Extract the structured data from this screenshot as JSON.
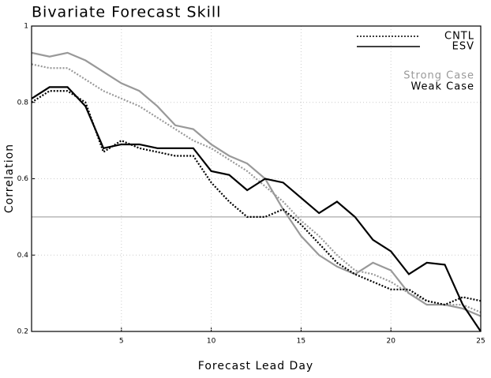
{
  "chart_data": {
    "type": "line",
    "title": "Bivariate Forecast Skill",
    "xlabel": "Forecast Lead Day",
    "ylabel": "Correlation",
    "x": [
      0,
      1,
      2,
      3,
      4,
      5,
      6,
      7,
      8,
      9,
      10,
      11,
      12,
      13,
      14,
      15,
      16,
      17,
      18,
      19,
      20,
      21,
      22,
      23,
      24,
      25
    ],
    "xlim": [
      0,
      25
    ],
    "xticks": [
      5,
      10,
      15,
      20,
      25
    ],
    "ylim": [
      0.2,
      1
    ],
    "yticks": [
      0.2,
      0.4,
      0.6,
      0.8,
      1
    ],
    "grid": true,
    "legend_position": "upper right",
    "reference_line": {
      "value": 0.5,
      "color": "#aaaaaa"
    },
    "legend": {
      "styles": [
        {
          "label": "CNTL",
          "dash": "dotted"
        },
        {
          "label": "ESV",
          "dash": "solid"
        }
      ],
      "colors": [
        {
          "label": "Strong Case",
          "color": "#999999"
        },
        {
          "label": "Weak Case",
          "color": "#000000"
        }
      ]
    },
    "series": [
      {
        "color": "#999999",
        "dash": "dotted",
        "values": [
          0.9,
          0.89,
          0.89,
          0.86,
          0.83,
          0.81,
          0.79,
          0.76,
          0.73,
          0.7,
          0.68,
          0.65,
          0.62,
          0.58,
          0.54,
          0.49,
          0.45,
          0.4,
          0.36,
          0.35,
          0.33,
          0.3,
          0.28,
          0.27,
          0.27,
          0.25
        ]
      },
      {
        "color": "#999999",
        "dash": "solid",
        "values": [
          0.93,
          0.92,
          0.93,
          0.91,
          0.88,
          0.85,
          0.83,
          0.79,
          0.74,
          0.73,
          0.69,
          0.66,
          0.64,
          0.6,
          0.52,
          0.45,
          0.4,
          0.37,
          0.35,
          0.38,
          0.36,
          0.3,
          0.27,
          0.27,
          0.26,
          0.24
        ]
      },
      {
        "color": "#000000",
        "dash": "dotted",
        "values": [
          0.8,
          0.83,
          0.83,
          0.8,
          0.67,
          0.7,
          0.68,
          0.67,
          0.66,
          0.66,
          0.59,
          0.54,
          0.5,
          0.5,
          0.52,
          0.48,
          0.43,
          0.38,
          0.35,
          0.33,
          0.31,
          0.31,
          0.28,
          0.27,
          0.29,
          0.28
        ]
      },
      {
        "color": "#000000",
        "dash": "solid",
        "values": [
          0.81,
          0.84,
          0.84,
          0.79,
          0.68,
          0.69,
          0.69,
          0.68,
          0.68,
          0.68,
          0.62,
          0.61,
          0.57,
          0.6,
          0.59,
          0.55,
          0.51,
          0.54,
          0.5,
          0.44,
          0.41,
          0.35,
          0.38,
          0.375,
          0.27,
          0.2
        ]
      }
    ]
  }
}
